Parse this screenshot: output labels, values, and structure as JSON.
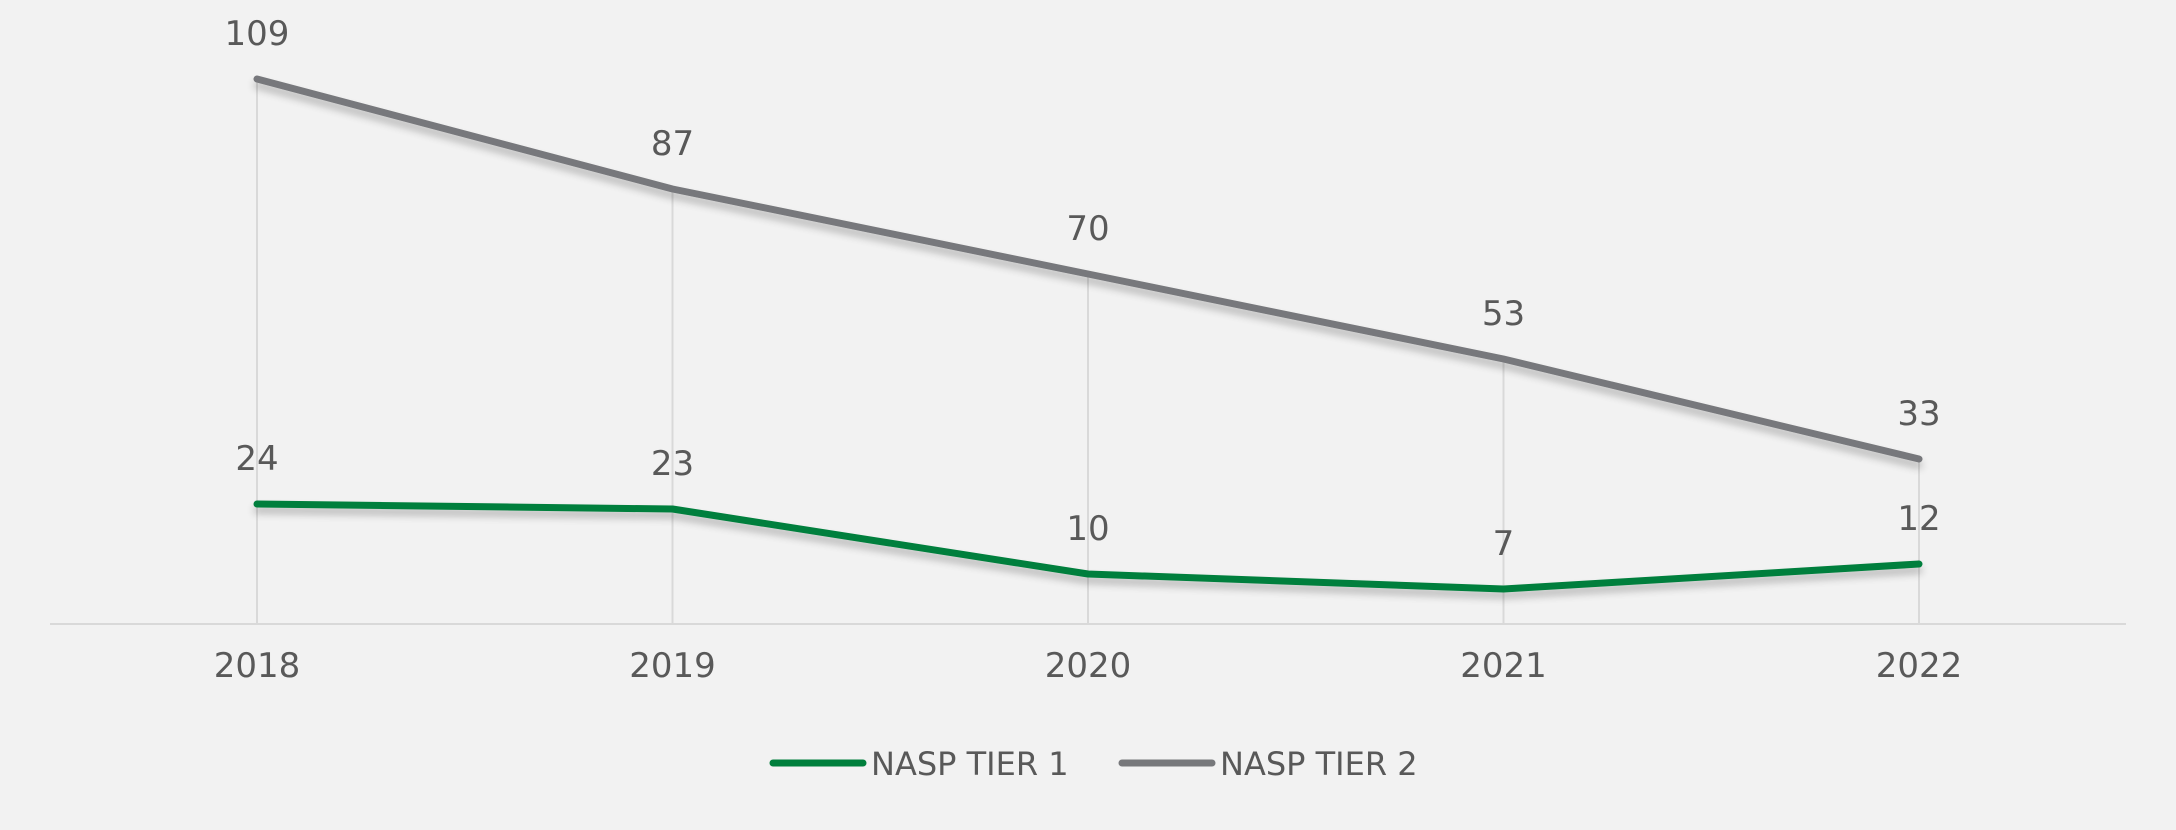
{
  "chart_data": {
    "type": "line",
    "title": "",
    "xlabel": "",
    "ylabel": "",
    "categories": [
      "2018",
      "2019",
      "2020",
      "2021",
      "2022"
    ],
    "series": [
      {
        "name": "NASP TIER 1",
        "values": [
          24,
          23,
          10,
          7,
          12
        ],
        "color": "#007f3c"
      },
      {
        "name": "NASP TIER 2",
        "values": [
          109,
          87,
          70,
          53,
          33
        ],
        "color": "#77787b"
      }
    ],
    "ylim": [
      0,
      120
    ],
    "grid": "vertical",
    "legend": "bottom-center",
    "data_labels": true
  },
  "colors": {
    "background": "#f2f2f2",
    "text": "#595959",
    "axis": "#d9d9d9",
    "gridline": "#d9d9d9"
  }
}
